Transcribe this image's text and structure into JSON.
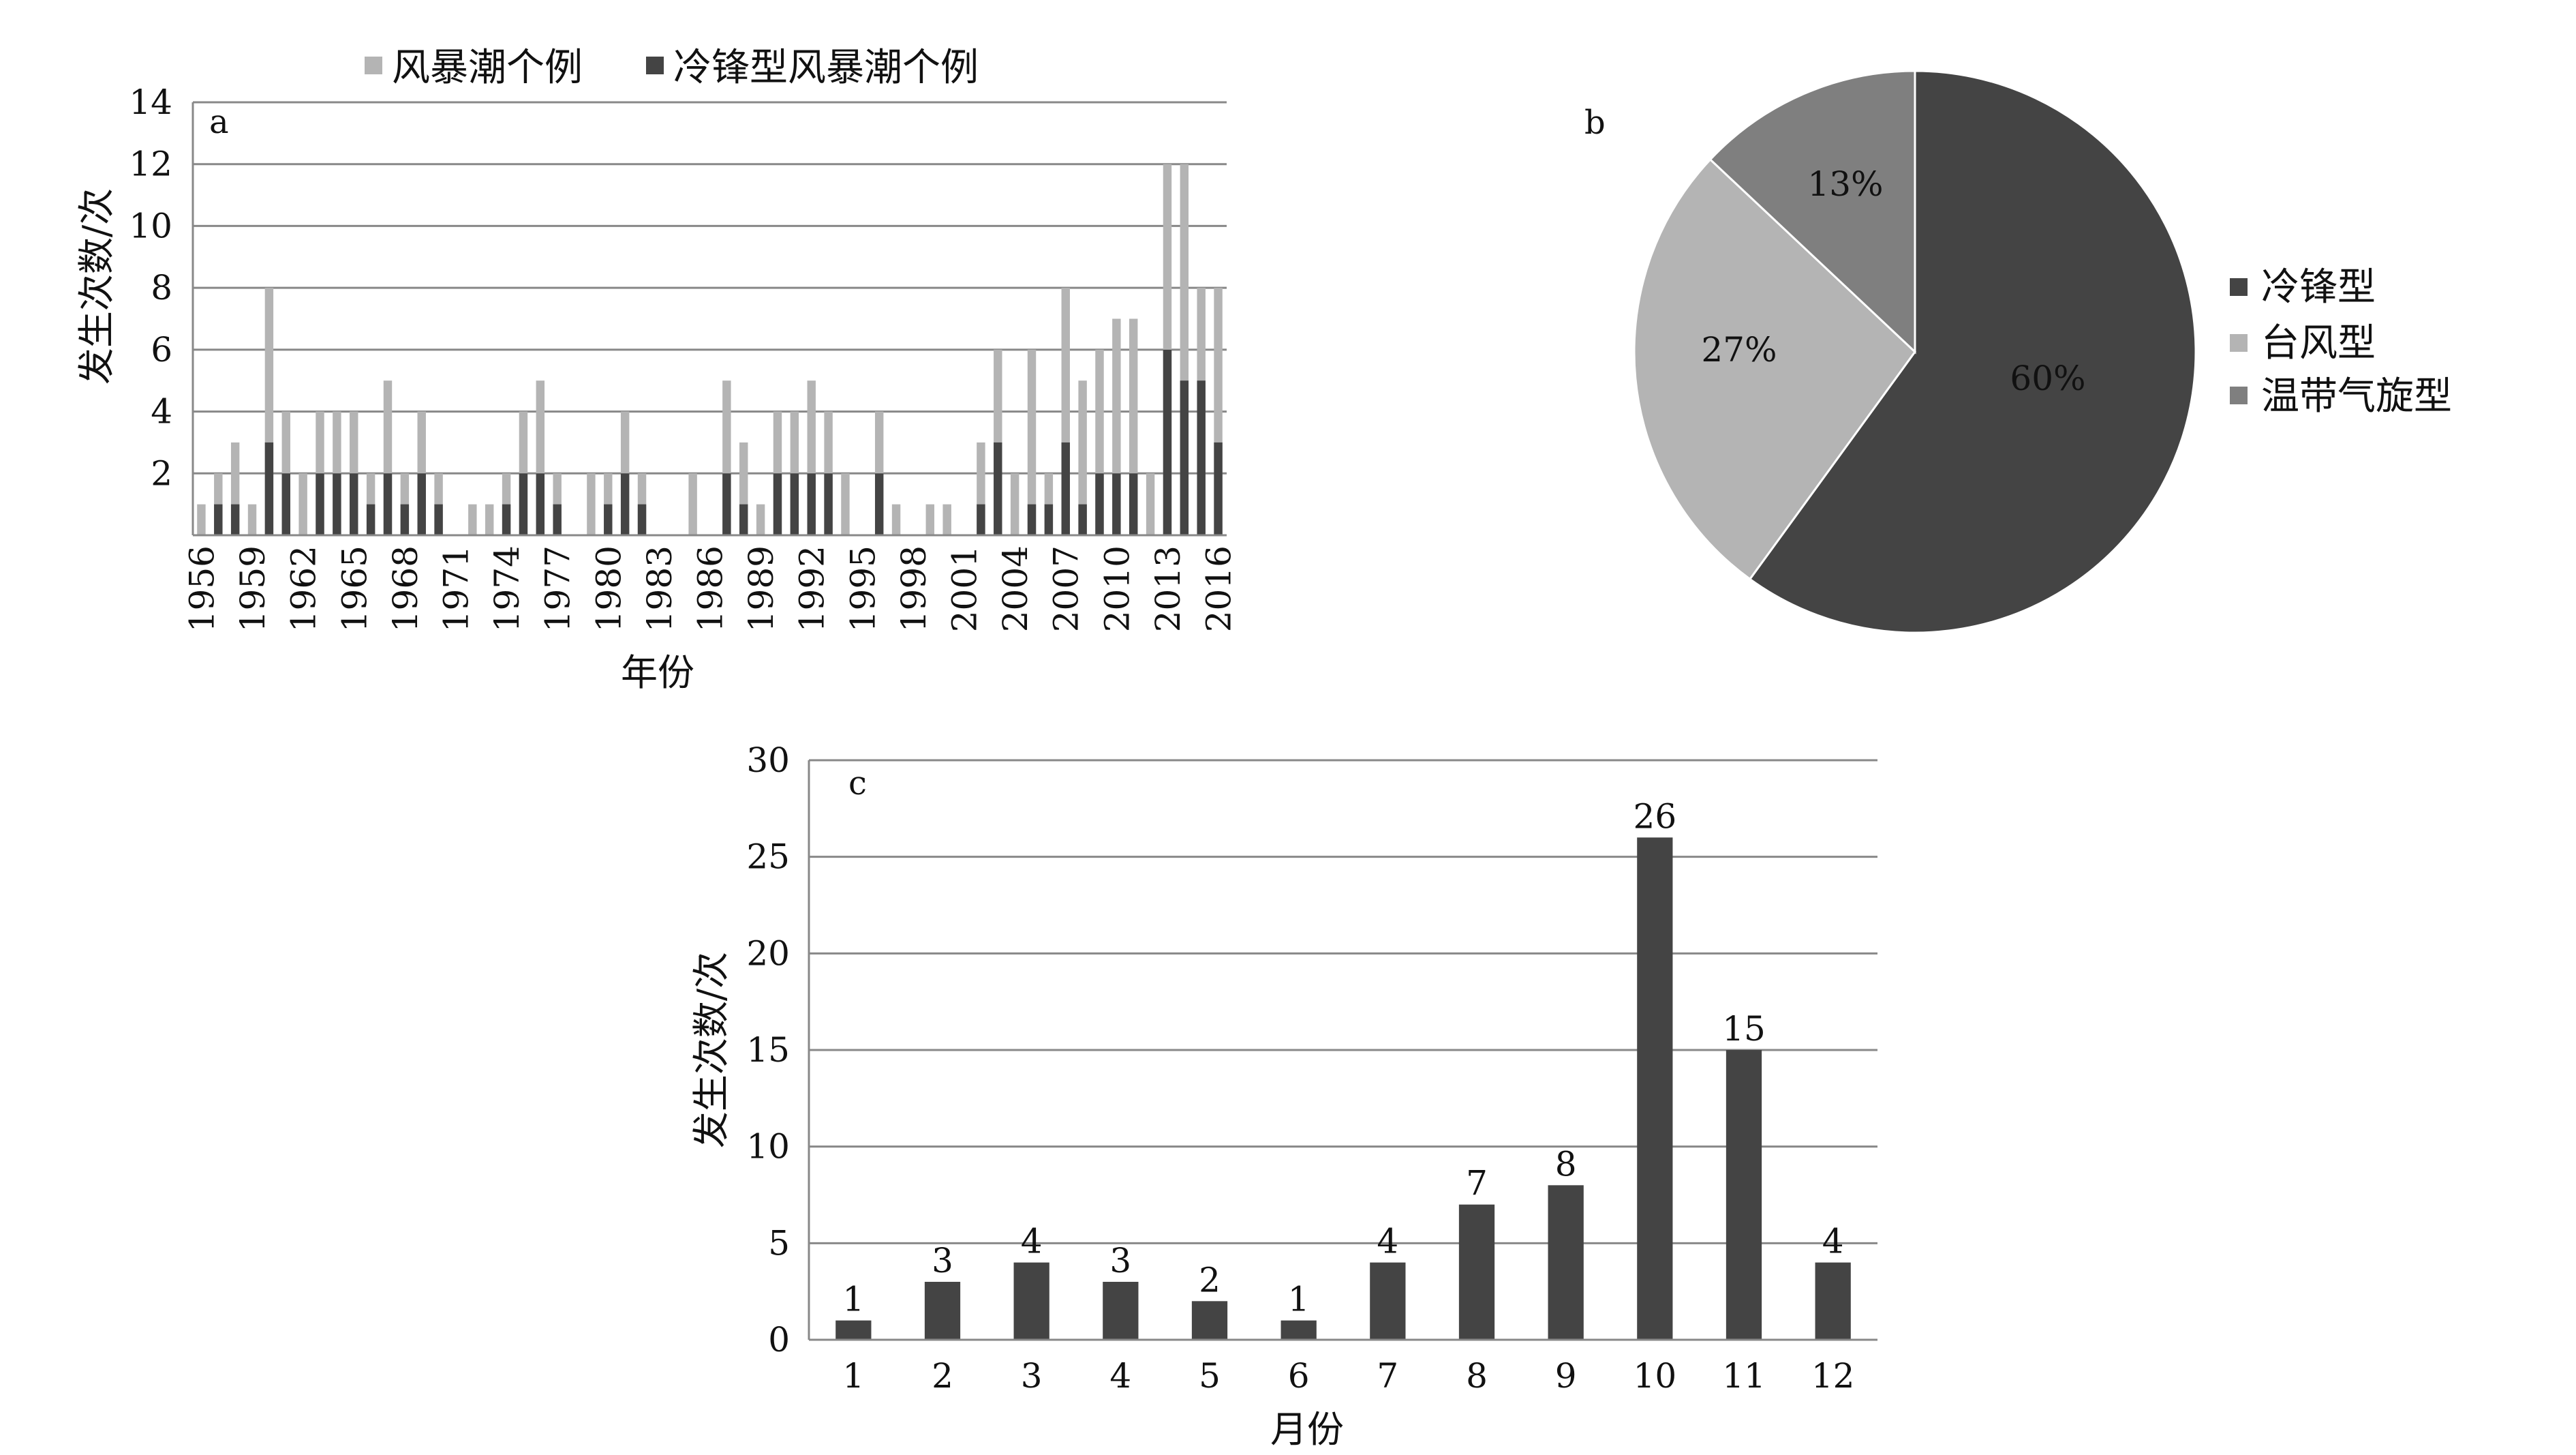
{
  "chart_data": [
    {
      "id": "a",
      "type": "bar",
      "panel_label": "a",
      "xlabel": "年份",
      "ylabel": "发生次数/次",
      "ylim": [
        0,
        14
      ],
      "yticks": [
        "2",
        "4",
        "6",
        "8",
        "10",
        "12",
        "14"
      ],
      "grid": true,
      "legend_position": "top",
      "x": [
        1956,
        1957,
        1958,
        1959,
        1960,
        1961,
        1962,
        1963,
        1964,
        1965,
        1966,
        1967,
        1968,
        1969,
        1970,
        1971,
        1972,
        1973,
        1974,
        1975,
        1976,
        1977,
        1978,
        1979,
        1980,
        1981,
        1982,
        1983,
        1984,
        1985,
        1986,
        1987,
        1988,
        1989,
        1990,
        1991,
        1992,
        1993,
        1994,
        1995,
        1996,
        1997,
        1998,
        1999,
        2000,
        2001,
        2002,
        2003,
        2004,
        2005,
        2006,
        2007,
        2008,
        2009,
        2010,
        2011,
        2012,
        2013,
        2014,
        2015,
        2016
      ],
      "xtick_labels": [
        "1956",
        "1959",
        "1962",
        "1965",
        "1968",
        "1971",
        "1974",
        "1977",
        "1980",
        "1983",
        "1986",
        "1989",
        "1992",
        "1995",
        "1998",
        "2001",
        "2004",
        "2007",
        "2010",
        "2013",
        "2016"
      ],
      "series": [
        {
          "name": "风暴潮个例",
          "color": "#b4b4b4",
          "values": [
            1,
            2,
            3,
            1,
            8,
            4,
            2,
            4,
            4,
            4,
            2,
            5,
            2,
            4,
            2,
            0,
            1,
            1,
            2,
            4,
            5,
            2,
            0,
            2,
            2,
            4,
            2,
            0,
            0,
            2,
            0,
            5,
            3,
            1,
            4,
            4,
            5,
            4,
            2,
            0,
            4,
            1,
            0,
            1,
            1,
            0,
            3,
            6,
            2,
            6,
            2,
            8,
            5,
            6,
            7,
            7,
            2,
            12,
            12,
            8,
            8
          ]
        },
        {
          "name": "冷锋型风暴潮个例",
          "color": "#444444",
          "values": [
            0,
            1,
            1,
            0,
            3,
            2,
            0,
            2,
            2,
            2,
            1,
            2,
            1,
            2,
            1,
            0,
            0,
            0,
            1,
            2,
            2,
            1,
            0,
            0,
            1,
            2,
            1,
            0,
            0,
            0,
            0,
            2,
            1,
            0,
            2,
            2,
            2,
            2,
            0,
            0,
            2,
            0,
            0,
            0,
            0,
            0,
            1,
            3,
            0,
            1,
            1,
            3,
            1,
            2,
            2,
            2,
            0,
            6,
            5,
            5,
            3
          ]
        }
      ]
    },
    {
      "id": "b",
      "type": "pie",
      "panel_label": "b",
      "legend_position": "right",
      "slices": [
        {
          "name": "冷锋型",
          "value": 60,
          "label": "60%",
          "color": "#444444"
        },
        {
          "name": "台风型",
          "value": 27,
          "label": "27%",
          "color": "#b4b4b4"
        },
        {
          "name": "温带气旋型",
          "value": 13,
          "label": "13%",
          "color": "#7f7f7f"
        }
      ]
    },
    {
      "id": "c",
      "type": "bar",
      "panel_label": "c",
      "xlabel": "月份",
      "ylabel": "发生次数/次",
      "ylim": [
        0,
        30
      ],
      "yticks": [
        "0",
        "5",
        "10",
        "15",
        "20",
        "25",
        "30"
      ],
      "grid": true,
      "categories": [
        "1",
        "2",
        "3",
        "4",
        "5",
        "6",
        "7",
        "8",
        "9",
        "10",
        "11",
        "12"
      ],
      "values": [
        1,
        3,
        4,
        3,
        2,
        1,
        4,
        7,
        8,
        26,
        15,
        4
      ],
      "data_labels": [
        "1",
        "3",
        "4",
        "3",
        "2",
        "1",
        "4",
        "7",
        "8",
        "26",
        "15",
        "4"
      ],
      "color": "#444444"
    }
  ]
}
